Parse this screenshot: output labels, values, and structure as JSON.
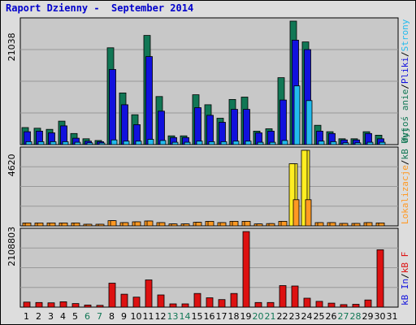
{
  "title": "Raport Dzienny -  September 2014",
  "colors": {
    "visits": "#117755",
    "pages": "#1111dd",
    "hits": "#22bbee",
    "bandwidth": "#dd1111",
    "kb_in": "#ff9922",
    "kb_out": "#ffee22",
    "grid": "#999999",
    "panel": "#c8c8c8",
    "weekday": "#000000",
    "weekend": "#117755"
  },
  "chart_data": [
    {
      "type": "bar",
      "categories": [
        "1",
        "2",
        "3",
        "4",
        "5",
        "6",
        "7",
        "8",
        "9",
        "10",
        "11",
        "12",
        "13",
        "14",
        "15",
        "16",
        "17",
        "18",
        "19",
        "20",
        "21",
        "22",
        "23",
        "24",
        "25",
        "26",
        "27",
        "28",
        "29",
        "30",
        "31"
      ],
      "weekend_days": [
        "6",
        "7",
        "13",
        "14",
        "20",
        "21",
        "27",
        "28"
      ],
      "ymax_label": "21038",
      "ylim": [
        0,
        21038
      ],
      "legend": [
        {
          "text": "Wyjoś anie",
          "color": "#117755"
        },
        {
          "text": "/",
          "color": "#000000"
        },
        {
          "text": "Pliki",
          "color": "#1111dd"
        },
        {
          "text": "/",
          "color": "#000000"
        },
        {
          "text": "Strony",
          "color": "#22bbee"
        }
      ],
      "series": [
        {
          "name": "Wyjoś anie",
          "color": "#117755",
          "values": [
            2900,
            2800,
            2600,
            4000,
            1900,
            1000,
            700,
            16500,
            8800,
            5100,
            18600,
            8200,
            1500,
            1500,
            8500,
            6800,
            4500,
            7700,
            8100,
            2300,
            2700,
            11400,
            21038,
            17500,
            3300,
            2200,
            1000,
            1000,
            2200,
            1600,
            0
          ]
        },
        {
          "name": "Pliki",
          "color": "#1111dd",
          "values": [
            2200,
            2300,
            2000,
            3200,
            1100,
            600,
            500,
            12800,
            6800,
            3400,
            15000,
            5700,
            1200,
            1200,
            6300,
            5000,
            3800,
            6000,
            6000,
            2000,
            2300,
            7600,
            17800,
            16200,
            2300,
            1900,
            800,
            800,
            1900,
            1000,
            0
          ]
        },
        {
          "name": "Strony",
          "color": "#22bbee",
          "values": [
            500,
            500,
            500,
            500,
            400,
            300,
            200,
            800,
            600,
            600,
            900,
            700,
            400,
            400,
            600,
            500,
            500,
            600,
            600,
            400,
            400,
            700,
            10000,
            7500,
            600,
            500,
            300,
            300,
            400,
            400,
            0
          ]
        }
      ]
    },
    {
      "type": "bar",
      "categories": [
        "1",
        "2",
        "3",
        "4",
        "5",
        "6",
        "7",
        "8",
        "9",
        "10",
        "11",
        "12",
        "13",
        "14",
        "15",
        "16",
        "17",
        "18",
        "19",
        "20",
        "21",
        "22",
        "23",
        "24",
        "25",
        "26",
        "27",
        "28",
        "29",
        "30",
        "31"
      ],
      "ymax_label": "4620",
      "ylim": [
        0,
        4620
      ],
      "legend": [
        {
          "text": "Lokalizacje",
          "color": "#ff9922"
        },
        {
          "text": "/",
          "color": "#000000"
        },
        {
          "text": "kB Out",
          "color": "#117755"
        }
      ],
      "series": [
        {
          "name": "Lokalizacje",
          "color": "#ff9922",
          "values": [
            180,
            180,
            180,
            180,
            180,
            100,
            100,
            320,
            200,
            250,
            300,
            200,
            120,
            120,
            220,
            280,
            200,
            280,
            280,
            120,
            140,
            280,
            1600,
            1600,
            200,
            200,
            150,
            150,
            200,
            180,
            0
          ]
        },
        {
          "name": "",
          "color": "#ffee22",
          "values": [
            0,
            0,
            0,
            0,
            0,
            0,
            0,
            0,
            0,
            0,
            0,
            0,
            0,
            0,
            0,
            0,
            0,
            0,
            0,
            0,
            0,
            0,
            3800,
            4620,
            0,
            0,
            0,
            0,
            0,
            0,
            0
          ]
        }
      ]
    },
    {
      "type": "bar",
      "categories": [
        "1",
        "2",
        "3",
        "4",
        "5",
        "6",
        "7",
        "8",
        "9",
        "10",
        "11",
        "12",
        "13",
        "14",
        "15",
        "16",
        "17",
        "18",
        "19",
        "20",
        "21",
        "22",
        "23",
        "24",
        "25",
        "26",
        "27",
        "28",
        "29",
        "30",
        "31"
      ],
      "ymax_label": "2108803",
      "ylim": [
        0,
        2108803
      ],
      "legend": [
        {
          "text": "kB In",
          "color": "#1111dd"
        },
        {
          "text": "/",
          "color": "#000000"
        },
        {
          "text": "kB F",
          "color": "#dd1111"
        }
      ],
      "series": [
        {
          "name": "kB F",
          "color": "#dd1111",
          "values": [
            140000,
            130000,
            120000,
            150000,
            100000,
            60000,
            50000,
            670000,
            360000,
            280000,
            760000,
            340000,
            90000,
            90000,
            380000,
            260000,
            210000,
            380000,
            2108803,
            130000,
            130000,
            600000,
            590000,
            250000,
            160000,
            110000,
            70000,
            80000,
            200000,
            1600000,
            0
          ]
        }
      ]
    }
  ]
}
